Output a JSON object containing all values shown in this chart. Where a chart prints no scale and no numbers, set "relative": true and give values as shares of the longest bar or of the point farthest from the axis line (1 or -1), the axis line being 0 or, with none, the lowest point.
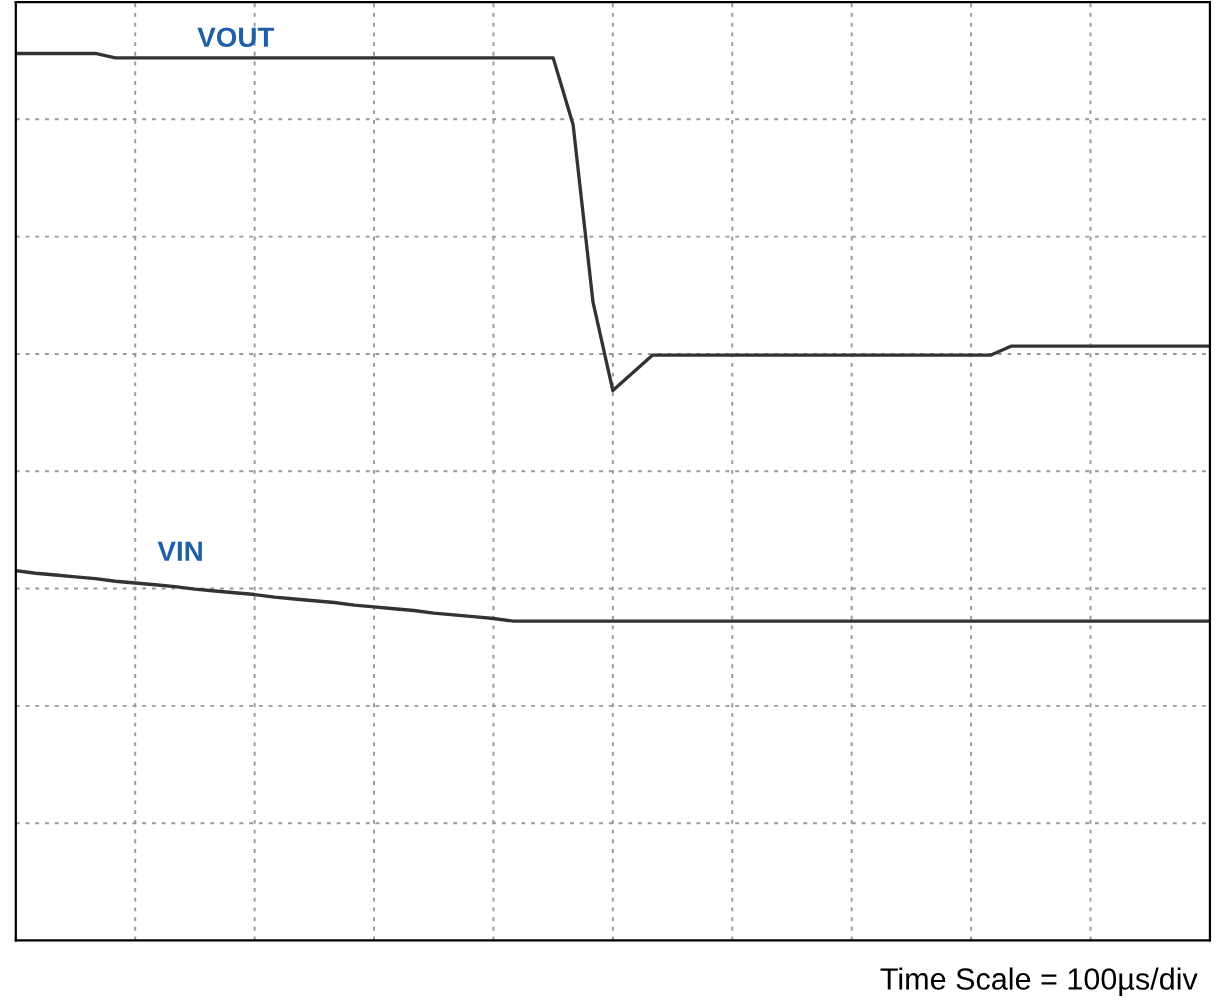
{
  "chart_data": {
    "type": "line",
    "relative": true,
    "grid": true,
    "legend": false,
    "categories": [
      null,
      null,
      null,
      null,
      null,
      null,
      null,
      null,
      null,
      null,
      null,
      null,
      null,
      null,
      null,
      null,
      null,
      null,
      null,
      null,
      null,
      null,
      null,
      null,
      null,
      null,
      null,
      null,
      null,
      null,
      null,
      null,
      null,
      null,
      null,
      null,
      null,
      null,
      null,
      null,
      null,
      null,
      null,
      null,
      null,
      null,
      null,
      null,
      null,
      null,
      null,
      null,
      null,
      null,
      null,
      null,
      null,
      null,
      null,
      null,
      null
    ],
    "series": [
      {
        "name": "VOUT",
        "color": "#333333",
        "values": [
          1.0,
          1.0,
          1.0,
          1.0,
          1.0,
          0.995,
          0.995,
          0.995,
          0.995,
          0.995,
          0.995,
          0.995,
          0.995,
          0.995,
          0.995,
          0.995,
          0.995,
          0.995,
          0.995,
          0.995,
          0.995,
          0.995,
          0.995,
          0.995,
          0.995,
          0.995,
          0.995,
          0.995,
          0.92,
          0.72,
          0.62,
          0.64,
          0.66,
          0.66,
          0.66,
          0.66,
          0.66,
          0.66,
          0.66,
          0.66,
          0.66,
          0.66,
          0.66,
          0.66,
          0.66,
          0.66,
          0.66,
          0.66,
          0.66,
          0.66,
          0.67,
          0.67,
          0.67,
          0.67,
          0.67,
          0.67,
          0.67,
          0.67,
          0.67,
          0.67,
          0.67
        ]
      },
      {
        "name": "VIN",
        "color": "#333333",
        "values": [
          0.417,
          0.414,
          0.412,
          0.41,
          0.408,
          0.405,
          0.403,
          0.401,
          0.399,
          0.396,
          0.394,
          0.392,
          0.39,
          0.387,
          0.385,
          0.383,
          0.381,
          0.378,
          0.376,
          0.374,
          0.372,
          0.369,
          0.367,
          0.365,
          0.363,
          0.36,
          0.36,
          0.36,
          0.36,
          0.36,
          0.36,
          0.36,
          0.36,
          0.36,
          0.36,
          0.36,
          0.36,
          0.36,
          0.36,
          0.36,
          0.36,
          0.36,
          0.36,
          0.36,
          0.36,
          0.36,
          0.36,
          0.36,
          0.36,
          0.36,
          0.36,
          0.36,
          0.36,
          0.36,
          0.36,
          0.36,
          0.36,
          0.36,
          0.36,
          0.36,
          0.36
        ]
      }
    ],
    "annotations": [
      "Time Scale = 100µs/div"
    ]
  }
}
